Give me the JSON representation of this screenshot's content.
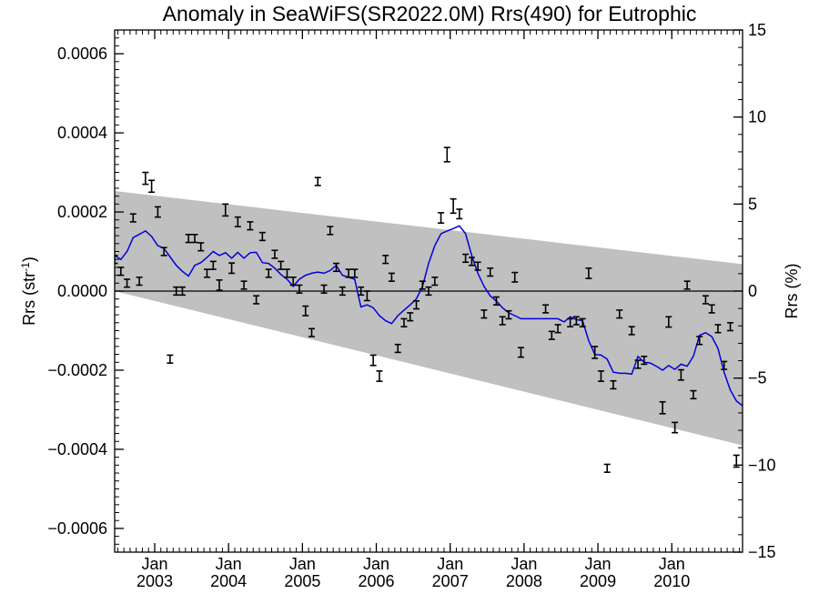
{
  "chart_data": {
    "type": "scatter",
    "title": "Anomaly in SeaWiFS(SR2022.0M) Rrs(490) for Eutrophic",
    "ylabel_left": "Rrs (str",
    "ylabel_left_sup": "-1",
    "ylabel_left_close": ")",
    "ylabel_right": "Rrs (%)",
    "xlim": [
      2002.458,
      2010.958
    ],
    "ylim": [
      -0.00066,
      0.00066
    ],
    "ylim_right": [
      -15,
      15
    ],
    "y_ticks": [
      {
        "v": 0.0006,
        "label": "0.0006"
      },
      {
        "v": 0.0004,
        "label": "0.0004"
      },
      {
        "v": 0.0002,
        "label": "0.0002"
      },
      {
        "v": 0.0,
        "label": "0.0000"
      },
      {
        "v": -0.0002,
        "label": "−0.0002"
      },
      {
        "v": -0.0004,
        "label": "−0.0004"
      },
      {
        "v": -0.0006,
        "label": "−0.0006"
      }
    ],
    "y_right_ticks": [
      {
        "v": 15,
        "label": "15"
      },
      {
        "v": 10,
        "label": "10"
      },
      {
        "v": 5,
        "label": "5"
      },
      {
        "v": 0,
        "label": "0"
      },
      {
        "v": -5,
        "label": "−5"
      },
      {
        "v": -10,
        "label": "−10"
      },
      {
        "v": -15,
        "label": "−15"
      }
    ],
    "x_ticks": [
      {
        "v": 2003.0,
        "month": "Jan",
        "year": "2003"
      },
      {
        "v": 2004.0,
        "month": "Jan",
        "year": "2004"
      },
      {
        "v": 2005.0,
        "month": "Jan",
        "year": "2005"
      },
      {
        "v": 2006.0,
        "month": "Jan",
        "year": "2006"
      },
      {
        "v": 2007.0,
        "month": "Jan",
        "year": "2007"
      },
      {
        "v": 2008.0,
        "month": "Jan",
        "year": "2008"
      },
      {
        "v": 2009.0,
        "month": "Jan",
        "year": "2009"
      },
      {
        "v": 2010.0,
        "month": "Jan",
        "year": "2010"
      }
    ],
    "band": {
      "x": [
        2002.458,
        2010.958
      ],
      "upper": [
        0.000253,
        6.8e-05
      ],
      "lower": [
        0.0,
        -0.00039
      ]
    },
    "band_color": "#c0c0c0",
    "line_color": "#0000dd",
    "zero_line": true,
    "points": [
      {
        "x": 2002.458,
        "y": 8e-05,
        "e": 1e-05
      },
      {
        "x": 2002.542,
        "y": 5e-05,
        "e": 1e-05
      },
      {
        "x": 2002.625,
        "y": 2e-05,
        "e": 1e-05
      },
      {
        "x": 2002.708,
        "y": 0.000185,
        "e": 1e-05
      },
      {
        "x": 2002.792,
        "y": 2.5e-05,
        "e": 1e-05
      },
      {
        "x": 2002.875,
        "y": 0.000285,
        "e": 1.5e-05
      },
      {
        "x": 2002.958,
        "y": 0.000265,
        "e": 1.5e-05
      },
      {
        "x": 2003.042,
        "y": 0.0002,
        "e": 1.3e-05
      },
      {
        "x": 2003.125,
        "y": 0.0001,
        "e": 1e-05
      },
      {
        "x": 2003.208,
        "y": -0.000172,
        "e": 1e-05
      },
      {
        "x": 2003.292,
        "y": 0.0,
        "e": 1e-05
      },
      {
        "x": 2003.375,
        "y": 0.0,
        "e": 1e-05
      },
      {
        "x": 2003.458,
        "y": 0.000133,
        "e": 1e-05
      },
      {
        "x": 2003.542,
        "y": 0.000133,
        "e": 1e-05
      },
      {
        "x": 2003.625,
        "y": 0.000112,
        "e": 1e-05
      },
      {
        "x": 2003.708,
        "y": 4.5e-05,
        "e": 1e-05
      },
      {
        "x": 2003.792,
        "y": 6.5e-05,
        "e": 1e-05
      },
      {
        "x": 2003.875,
        "y": 1.5e-05,
        "e": 1.3e-05
      },
      {
        "x": 2003.958,
        "y": 0.000205,
        "e": 1.5e-05
      },
      {
        "x": 2004.042,
        "y": 5.8e-05,
        "e": 1.3e-05
      },
      {
        "x": 2004.125,
        "y": 0.000175,
        "e": 1.2e-05
      },
      {
        "x": 2004.208,
        "y": 1.5e-05,
        "e": 1e-05
      },
      {
        "x": 2004.292,
        "y": 0.000165,
        "e": 1e-05
      },
      {
        "x": 2004.375,
        "y": -2.2e-05,
        "e": 1e-05
      },
      {
        "x": 2004.458,
        "y": 0.000138,
        "e": 1e-05
      },
      {
        "x": 2004.542,
        "y": 4.5e-05,
        "e": 1e-05
      },
      {
        "x": 2004.625,
        "y": 9.3e-05,
        "e": 1e-05
      },
      {
        "x": 2004.708,
        "y": 6.5e-05,
        "e": 1e-05
      },
      {
        "x": 2004.792,
        "y": 4.5e-05,
        "e": 1e-05
      },
      {
        "x": 2004.875,
        "y": 2.5e-05,
        "e": 1e-05
      },
      {
        "x": 2004.958,
        "y": 5e-06,
        "e": 1e-05
      },
      {
        "x": 2005.042,
        "y": -5e-05,
        "e": 1.2e-05
      },
      {
        "x": 2005.125,
        "y": -0.000105,
        "e": 1e-05
      },
      {
        "x": 2005.208,
        "y": 0.000277,
        "e": 1e-05
      },
      {
        "x": 2005.292,
        "y": 5e-06,
        "e": 1e-05
      },
      {
        "x": 2005.375,
        "y": 0.000153,
        "e": 1e-05
      },
      {
        "x": 2005.458,
        "y": 6e-05,
        "e": 1e-05
      },
      {
        "x": 2005.542,
        "y": 0.0,
        "e": 1e-05
      },
      {
        "x": 2005.625,
        "y": 4.5e-05,
        "e": 1e-05
      },
      {
        "x": 2005.708,
        "y": 4.5e-05,
        "e": 1e-05
      },
      {
        "x": 2005.792,
        "y": 0.0,
        "e": 1e-05
      },
      {
        "x": 2005.875,
        "y": -1.2e-05,
        "e": 1.2e-05
      },
      {
        "x": 2005.958,
        "y": -0.000175,
        "e": 1.3e-05
      },
      {
        "x": 2006.042,
        "y": -0.000215,
        "e": 1.3e-05
      },
      {
        "x": 2006.125,
        "y": 8e-05,
        "e": 1e-05
      },
      {
        "x": 2006.208,
        "y": 3.5e-05,
        "e": 1e-05
      },
      {
        "x": 2006.292,
        "y": -0.000145,
        "e": 1e-05
      },
      {
        "x": 2006.375,
        "y": -8e-05,
        "e": 1e-05
      },
      {
        "x": 2006.458,
        "y": -6.5e-05,
        "e": 1e-05
      },
      {
        "x": 2006.542,
        "y": -3.5e-05,
        "e": 1e-05
      },
      {
        "x": 2006.625,
        "y": 1.5e-05,
        "e": 1e-05
      },
      {
        "x": 2006.708,
        "y": 0.0,
        "e": 1e-05
      },
      {
        "x": 2006.792,
        "y": 2.5e-05,
        "e": 1e-05
      },
      {
        "x": 2006.875,
        "y": 0.000185,
        "e": 1.3e-05
      },
      {
        "x": 2006.958,
        "y": 0.000345,
        "e": 1.8e-05
      },
      {
        "x": 2007.042,
        "y": 0.000215,
        "e": 1.8e-05
      },
      {
        "x": 2007.125,
        "y": 0.000195,
        "e": 1.2e-05
      },
      {
        "x": 2007.208,
        "y": 8.3e-05,
        "e": 1e-05
      },
      {
        "x": 2007.292,
        "y": 7.5e-05,
        "e": 1e-05
      },
      {
        "x": 2007.375,
        "y": 6.3e-05,
        "e": 1e-05
      },
      {
        "x": 2007.458,
        "y": -5.8e-05,
        "e": 1e-05
      },
      {
        "x": 2007.542,
        "y": 4.8e-05,
        "e": 1e-05
      },
      {
        "x": 2007.625,
        "y": -2.5e-05,
        "e": 1e-05
      },
      {
        "x": 2007.708,
        "y": -7.5e-05,
        "e": 1e-05
      },
      {
        "x": 2007.792,
        "y": -6e-05,
        "e": 1e-05
      },
      {
        "x": 2007.875,
        "y": 3.5e-05,
        "e": 1.2e-05
      },
      {
        "x": 2007.958,
        "y": -0.000155,
        "e": 1.2e-05
      },
      {
        "x": 2008.292,
        "y": -4.5e-05,
        "e": 1e-05
      },
      {
        "x": 2008.375,
        "y": -0.000112,
        "e": 1e-05
      },
      {
        "x": 2008.458,
        "y": -9.5e-05,
        "e": 1e-05
      },
      {
        "x": 2008.625,
        "y": -8e-05,
        "e": 1e-05
      },
      {
        "x": 2008.708,
        "y": -7.5e-05,
        "e": 1e-05
      },
      {
        "x": 2008.792,
        "y": -8e-05,
        "e": 1e-05
      },
      {
        "x": 2008.875,
        "y": 4.5e-05,
        "e": 1.3e-05
      },
      {
        "x": 2008.958,
        "y": -0.000155,
        "e": 1.5e-05
      },
      {
        "x": 2009.042,
        "y": -0.000215,
        "e": 1.3e-05
      },
      {
        "x": 2009.125,
        "y": -0.000448,
        "e": 1e-05
      },
      {
        "x": 2009.208,
        "y": -0.000237,
        "e": 1e-05
      },
      {
        "x": 2009.292,
        "y": -5.8e-05,
        "e": 1e-05
      },
      {
        "x": 2009.458,
        "y": -0.0001,
        "e": 1e-05
      },
      {
        "x": 2009.542,
        "y": -0.000185,
        "e": 1e-05
      },
      {
        "x": 2009.625,
        "y": -0.000175,
        "e": 1e-05
      },
      {
        "x": 2009.875,
        "y": -0.000295,
        "e": 1.5e-05
      },
      {
        "x": 2009.958,
        "y": -7.8e-05,
        "e": 1.3e-05
      },
      {
        "x": 2010.042,
        "y": -0.000345,
        "e": 1.3e-05
      },
      {
        "x": 2010.125,
        "y": -0.000212,
        "e": 1.3e-05
      },
      {
        "x": 2010.208,
        "y": 1.5e-05,
        "e": 1e-05
      },
      {
        "x": 2010.292,
        "y": -0.000262,
        "e": 1e-05
      },
      {
        "x": 2010.375,
        "y": -0.000125,
        "e": 1e-05
      },
      {
        "x": 2010.458,
        "y": -2.2e-05,
        "e": 1e-05
      },
      {
        "x": 2010.542,
        "y": -4.5e-05,
        "e": 1e-05
      },
      {
        "x": 2010.625,
        "y": -9.5e-05,
        "e": 1e-05
      },
      {
        "x": 2010.708,
        "y": -0.000188,
        "e": 1e-05
      },
      {
        "x": 2010.792,
        "y": -9e-05,
        "e": 1e-05
      },
      {
        "x": 2010.875,
        "y": -0.00043,
        "e": 1.5e-05
      }
    ],
    "smooth_line": [
      [
        2002.458,
        9e-05
      ],
      [
        2002.542,
        8e-05
      ],
      [
        2002.625,
        0.0001
      ],
      [
        2002.708,
        0.000135
      ],
      [
        2002.875,
        0.000152
      ],
      [
        2002.958,
        0.000138
      ],
      [
        2003.042,
        0.000115
      ],
      [
        2003.125,
        0.000108
      ],
      [
        2003.292,
        6.5e-05
      ],
      [
        2003.375,
        5e-05
      ],
      [
        2003.458,
        3.8e-05
      ],
      [
        2003.542,
        6.5e-05
      ],
      [
        2003.625,
        7.2e-05
      ],
      [
        2003.708,
        8.5e-05
      ],
      [
        2003.792,
        0.0001
      ],
      [
        2003.875,
        9e-05
      ],
      [
        2003.958,
        9.7e-05
      ],
      [
        2004.042,
        8.3e-05
      ],
      [
        2004.125,
        9.8e-05
      ],
      [
        2004.208,
        8.3e-05
      ],
      [
        2004.292,
        9.7e-05
      ],
      [
        2004.375,
        9.8e-05
      ],
      [
        2004.458,
        7.2e-05
      ],
      [
        2004.542,
        7e-05
      ],
      [
        2004.625,
        5.8e-05
      ],
      [
        2004.708,
        4.2e-05
      ],
      [
        2004.792,
        3e-05
      ],
      [
        2004.875,
        1.2e-05
      ],
      [
        2004.958,
        3e-05
      ],
      [
        2005.042,
        4e-05
      ],
      [
        2005.125,
        4.5e-05
      ],
      [
        2005.208,
        4.8e-05
      ],
      [
        2005.292,
        4.5e-05
      ],
      [
        2005.375,
        5.2e-05
      ],
      [
        2005.458,
        6.5e-05
      ],
      [
        2005.542,
        4e-05
      ],
      [
        2005.625,
        3.5e-05
      ],
      [
        2005.708,
        3e-05
      ],
      [
        2005.792,
        -4e-05
      ],
      [
        2005.875,
        -3.5e-05
      ],
      [
        2005.958,
        -4.2e-05
      ],
      [
        2006.042,
        -6.2e-05
      ],
      [
        2006.125,
        -7.5e-05
      ],
      [
        2006.208,
        -8.2e-05
      ],
      [
        2006.292,
        -6.2e-05
      ],
      [
        2006.375,
        -4.8e-05
      ],
      [
        2006.458,
        -3.5e-05
      ],
      [
        2006.542,
        -2e-05
      ],
      [
        2006.625,
        1.2e-05
      ],
      [
        2006.708,
        7e-05
      ],
      [
        2006.792,
        0.000115
      ],
      [
        2006.875,
        0.000145
      ],
      [
        2006.958,
        0.000152
      ],
      [
        2007.042,
        0.000158
      ],
      [
        2007.125,
        0.000165
      ],
      [
        2007.208,
        0.000145
      ],
      [
        2007.292,
        9e-05
      ],
      [
        2007.375,
        4.5e-05
      ],
      [
        2007.458,
        1.2e-05
      ],
      [
        2007.542,
        -1.2e-05
      ],
      [
        2007.625,
        -2.5e-05
      ],
      [
        2007.708,
        -4.2e-05
      ],
      [
        2007.792,
        -5.5e-05
      ],
      [
        2007.875,
        -6.2e-05
      ],
      [
        2007.958,
        -7e-05
      ],
      [
        2008.458,
        -7e-05
      ],
      [
        2008.542,
        -7.8e-05
      ],
      [
        2008.625,
        -6.5e-05
      ],
      [
        2008.708,
        -7.2e-05
      ],
      [
        2008.792,
        -7.5e-05
      ],
      [
        2008.875,
        -0.000125
      ],
      [
        2008.958,
        -0.00016
      ],
      [
        2009.042,
        -0.000162
      ],
      [
        2009.125,
        -0.000172
      ],
      [
        2009.208,
        -0.000205
      ],
      [
        2009.292,
        -0.000208
      ],
      [
        2009.375,
        -0.000208
      ],
      [
        2009.458,
        -0.00021
      ],
      [
        2009.542,
        -0.000165
      ],
      [
        2009.625,
        -0.00018
      ],
      [
        2009.708,
        -0.000182
      ],
      [
        2009.792,
        -0.00019
      ],
      [
        2009.875,
        -0.0002
      ],
      [
        2009.958,
        -0.000188
      ],
      [
        2010.042,
        -0.000198
      ],
      [
        2010.125,
        -0.000185
      ],
      [
        2010.208,
        -0.00019
      ],
      [
        2010.292,
        -0.000165
      ],
      [
        2010.375,
        -0.000112
      ],
      [
        2010.458,
        -0.000105
      ],
      [
        2010.542,
        -0.000115
      ],
      [
        2010.625,
        -0.000145
      ],
      [
        2010.708,
        -0.000205
      ],
      [
        2010.792,
        -0.00025
      ],
      [
        2010.875,
        -0.000278
      ],
      [
        2010.958,
        -0.00029
      ]
    ]
  }
}
